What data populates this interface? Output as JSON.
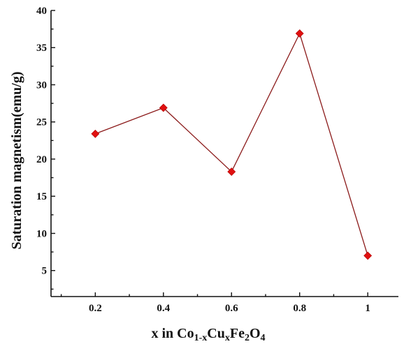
{
  "chart_data": {
    "type": "line",
    "x": [
      0.2,
      0.4,
      0.6,
      0.8,
      1.0
    ],
    "series": [
      {
        "values": [
          23.4,
          26.9,
          18.3,
          36.9,
          7.0
        ],
        "color": "#e01010",
        "line_color": "#8b1a1a",
        "marker": "diamond"
      }
    ],
    "x_ticks": [
      "0.2",
      "0.4",
      "0.6",
      "0.8",
      "1"
    ],
    "y_ticks": [
      "5",
      "10",
      "15",
      "20",
      "25",
      "30",
      "35",
      "40"
    ],
    "xlim": [
      0.07,
      1.09
    ],
    "ylim": [
      1.5,
      40
    ],
    "xlabel": {
      "prefix": "x in Co",
      "sub1": "1-x",
      "mid1": "Cu",
      "sub2": "x",
      "mid2": "Fe",
      "sub3": "2",
      "mid3": "O",
      "sub4": "4"
    },
    "ylabel": "Saturation magnetism(emu/g)",
    "grid": false
  }
}
